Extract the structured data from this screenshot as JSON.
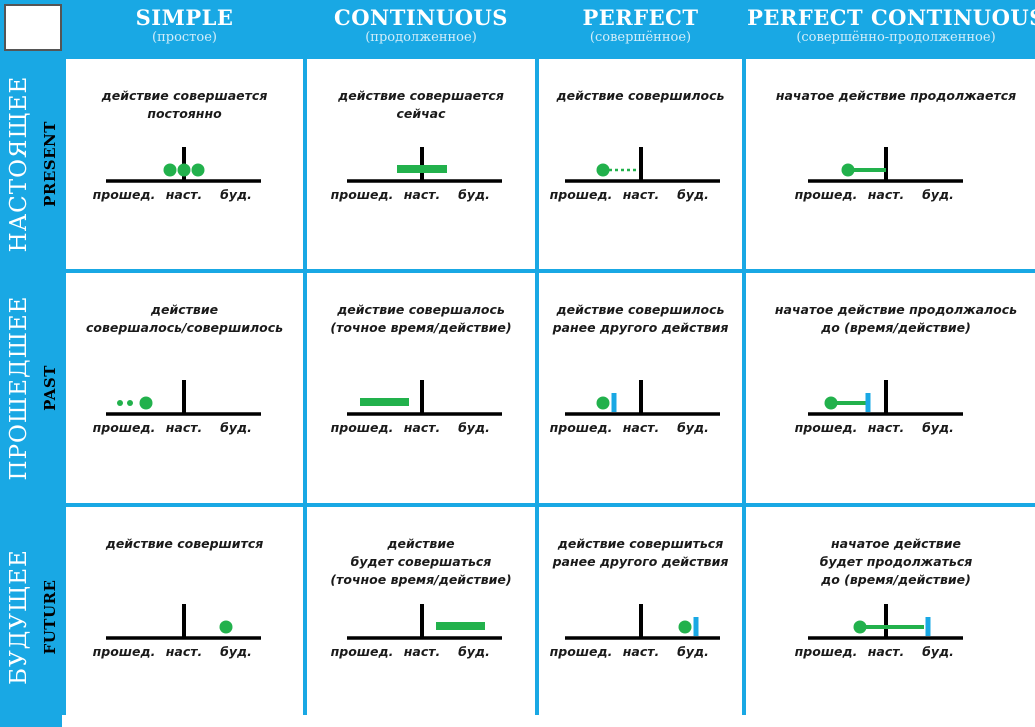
{
  "columns": [
    {
      "title": "SIMPLE",
      "subtitle": "(простое)"
    },
    {
      "title": "CONTINUOUS",
      "subtitle": "(продолженное)"
    },
    {
      "title": "PERFECT",
      "subtitle": "(совершённое)"
    },
    {
      "title": "PERFECT CONTINUOUS",
      "subtitle": "(совершённо-продолженное)"
    }
  ],
  "rows": [
    {
      "ru": "НАСТОЯЩЕЕ",
      "en": "PRESENT"
    },
    {
      "ru": "ПРОШЕДШЕЕ",
      "en": "PAST"
    },
    {
      "ru": "БУДУЩЕЕ",
      "en": "FUTURE"
    }
  ],
  "timeline_labels": {
    "past": "прошед.",
    "now": "наст.",
    "future": "буд."
  },
  "colors": {
    "header_bg": "#19a8e4",
    "action": "#22b14c",
    "marker": "#19a8e4",
    "line": "#000000"
  },
  "cells": [
    [
      {
        "text": "действие совершается\nпостоянно",
        "diagram": "present-simple"
      },
      {
        "text": "действие совершается\nсейчас",
        "diagram": "present-continuous"
      },
      {
        "text": "действие совершилось",
        "diagram": "present-perfect"
      },
      {
        "text": "начатое действие продолжается",
        "diagram": "present-perfect-continuous"
      }
    ],
    [
      {
        "text": "действие\nсовершалось/совершилось",
        "diagram": "past-simple"
      },
      {
        "text": "действие совершалось\n(точное время/действие)",
        "diagram": "past-continuous"
      },
      {
        "text": "действие совершилось\nранее другого действия",
        "diagram": "past-perfect"
      },
      {
        "text": "начатое действие продолжалось\nдо (время/действие)",
        "diagram": "past-perfect-continuous"
      }
    ],
    [
      {
        "text": "действие совершится",
        "diagram": "future-simple"
      },
      {
        "text": "действие\nбудет совершаться\n(точное время/действие)",
        "diagram": "future-continuous"
      },
      {
        "text": "действие совершиться\nранее другого действия",
        "diagram": "future-perfect"
      },
      {
        "text": "начатое действие\nбудет продолжаться\nдо (время/действие)",
        "diagram": "future-perfect-continuous"
      }
    ]
  ]
}
